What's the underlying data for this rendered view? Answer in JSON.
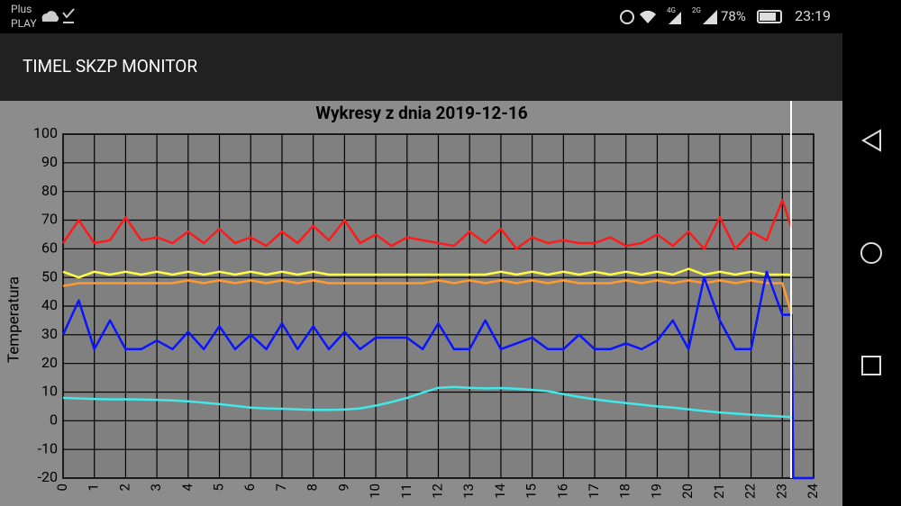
{
  "status_bar": {
    "carrier_1": "Plus",
    "carrier_2": "PLAY",
    "network_1": "4G",
    "network_2": "2G",
    "battery": "78%",
    "time": "23:19"
  },
  "app_bar": {
    "title": "TIMEL SKZP MONITOR"
  },
  "chart_data": {
    "type": "line",
    "title": "Wykresy z dnia 2019-12-16",
    "y_label": "Temperatura",
    "x": [
      0,
      0.5,
      1,
      1.5,
      2,
      2.5,
      3,
      3.5,
      4,
      4.5,
      5,
      5.5,
      6,
      6.5,
      7,
      7.5,
      8,
      8.5,
      9,
      9.5,
      10,
      10.5,
      11,
      11.5,
      12,
      12.5,
      13,
      13.5,
      14,
      14.5,
      15,
      15.5,
      16,
      16.5,
      17,
      17.5,
      18,
      18.5,
      19,
      19.5,
      20,
      20.5,
      21,
      21.5,
      22,
      22.5,
      23,
      23.3,
      23.35,
      24
    ],
    "series": [
      {
        "color": "#ff1a1a",
        "values": [
          62,
          70,
          62,
          63,
          71,
          63,
          64,
          62,
          66,
          62,
          67,
          62,
          64,
          61,
          66,
          62,
          68,
          63,
          70,
          62,
          65,
          61,
          64,
          63,
          62,
          61,
          66,
          62,
          67,
          60,
          64,
          62,
          63,
          62,
          62,
          64,
          61,
          62,
          65,
          61,
          66,
          60,
          71,
          60,
          66,
          63,
          77,
          67,
          null,
          null
        ]
      },
      {
        "color": "#ffff40",
        "values": [
          52,
          50,
          52,
          51,
          52,
          51,
          52,
          51,
          52,
          51,
          52,
          51,
          52,
          51,
          52,
          51,
          52,
          51,
          51,
          51,
          51,
          51,
          51,
          51,
          51,
          51,
          51,
          51,
          52,
          51,
          52,
          51,
          52,
          51,
          52,
          51,
          52,
          51,
          52,
          51,
          53,
          51,
          52,
          51,
          52,
          51,
          51,
          51,
          null,
          null
        ]
      },
      {
        "color": "#ff9a30",
        "values": [
          47,
          48,
          48,
          48,
          48,
          48,
          48,
          48,
          49,
          48,
          49,
          48,
          49,
          48,
          49,
          48,
          49,
          48,
          48,
          48,
          48,
          48,
          48,
          48,
          49,
          48,
          49,
          48,
          49,
          48,
          49,
          48,
          49,
          48,
          48,
          48,
          49,
          48,
          49,
          48,
          49,
          48,
          49,
          48,
          49,
          48,
          48,
          37,
          null,
          null
        ]
      },
      {
        "color": "#40e8e8",
        "values": [
          8,
          7.8,
          7.6,
          7.5,
          7.5,
          7.4,
          7.3,
          7.1,
          6.8,
          6.3,
          5.8,
          5.2,
          4.6,
          4.3,
          4.2,
          4,
          3.8,
          3.8,
          3.9,
          4.3,
          5.3,
          6.5,
          8,
          9.8,
          11.5,
          11.8,
          11.5,
          11.3,
          11.4,
          11.2,
          10.8,
          10.3,
          9.3,
          8.3,
          7.5,
          6.8,
          6.2,
          5.6,
          5,
          4.6,
          4,
          3.4,
          2.9,
          2.5,
          2.1,
          1.8,
          1.5,
          1.3,
          -20,
          null
        ]
      },
      {
        "color": "#0a14ff",
        "values": [
          30,
          42,
          25,
          35,
          25,
          25,
          28,
          25,
          31,
          25,
          33,
          25,
          30,
          25,
          34,
          25,
          33,
          25,
          31,
          25,
          29,
          29,
          29,
          25,
          34,
          25,
          25,
          35,
          25,
          27,
          29,
          25,
          25,
          30,
          25,
          25,
          27,
          25,
          28,
          35,
          25,
          50,
          35,
          25,
          25,
          52,
          37,
          37,
          -20,
          -20
        ]
      }
    ],
    "xlim": [
      0,
      24
    ],
    "xticks": [
      0,
      1,
      2,
      3,
      4,
      5,
      6,
      7,
      8,
      9,
      10,
      11,
      12,
      13,
      14,
      15,
      16,
      17,
      18,
      19,
      20,
      21,
      22,
      23,
      24
    ],
    "ylim": [
      -20,
      100
    ],
    "yticks": [
      -20,
      -10,
      0,
      10,
      20,
      30,
      40,
      50,
      60,
      70,
      80,
      90,
      100
    ],
    "grid": true
  }
}
